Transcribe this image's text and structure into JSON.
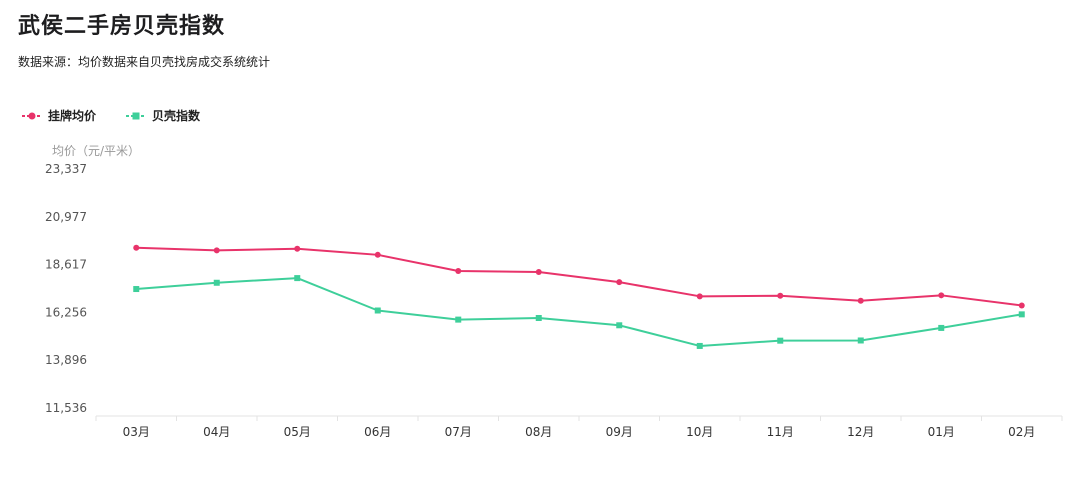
{
  "title": "武侯二手房贝壳指数",
  "subtitle": "数据来源：均价数据来自贝壳找房成交系统统计",
  "chart_data": {
    "type": "line",
    "ylabel": "均价（元/平米）",
    "categories": [
      "03月",
      "04月",
      "05月",
      "06月",
      "07月",
      "08月",
      "09月",
      "10月",
      "11月",
      "12月",
      "01月",
      "02月"
    ],
    "yticks": [
      "11,536",
      "13,896",
      "16,256",
      "18,617",
      "20,977",
      "23,337"
    ],
    "ylim": [
      11536,
      23337
    ],
    "series": [
      {
        "name": "挂牌均价",
        "color": "#e8336a",
        "values": [
          19450,
          19320,
          19400,
          19100,
          18300,
          18250,
          17750,
          17050,
          17080,
          16830,
          17100,
          16600
        ]
      },
      {
        "name": "贝壳指数",
        "color": "#3ecf9a",
        "values": [
          17410,
          17720,
          17950,
          16350,
          15900,
          15980,
          15620,
          14600,
          14860,
          14870,
          15490,
          16160
        ]
      }
    ],
    "legend_position": "top-left",
    "grid": false
  }
}
